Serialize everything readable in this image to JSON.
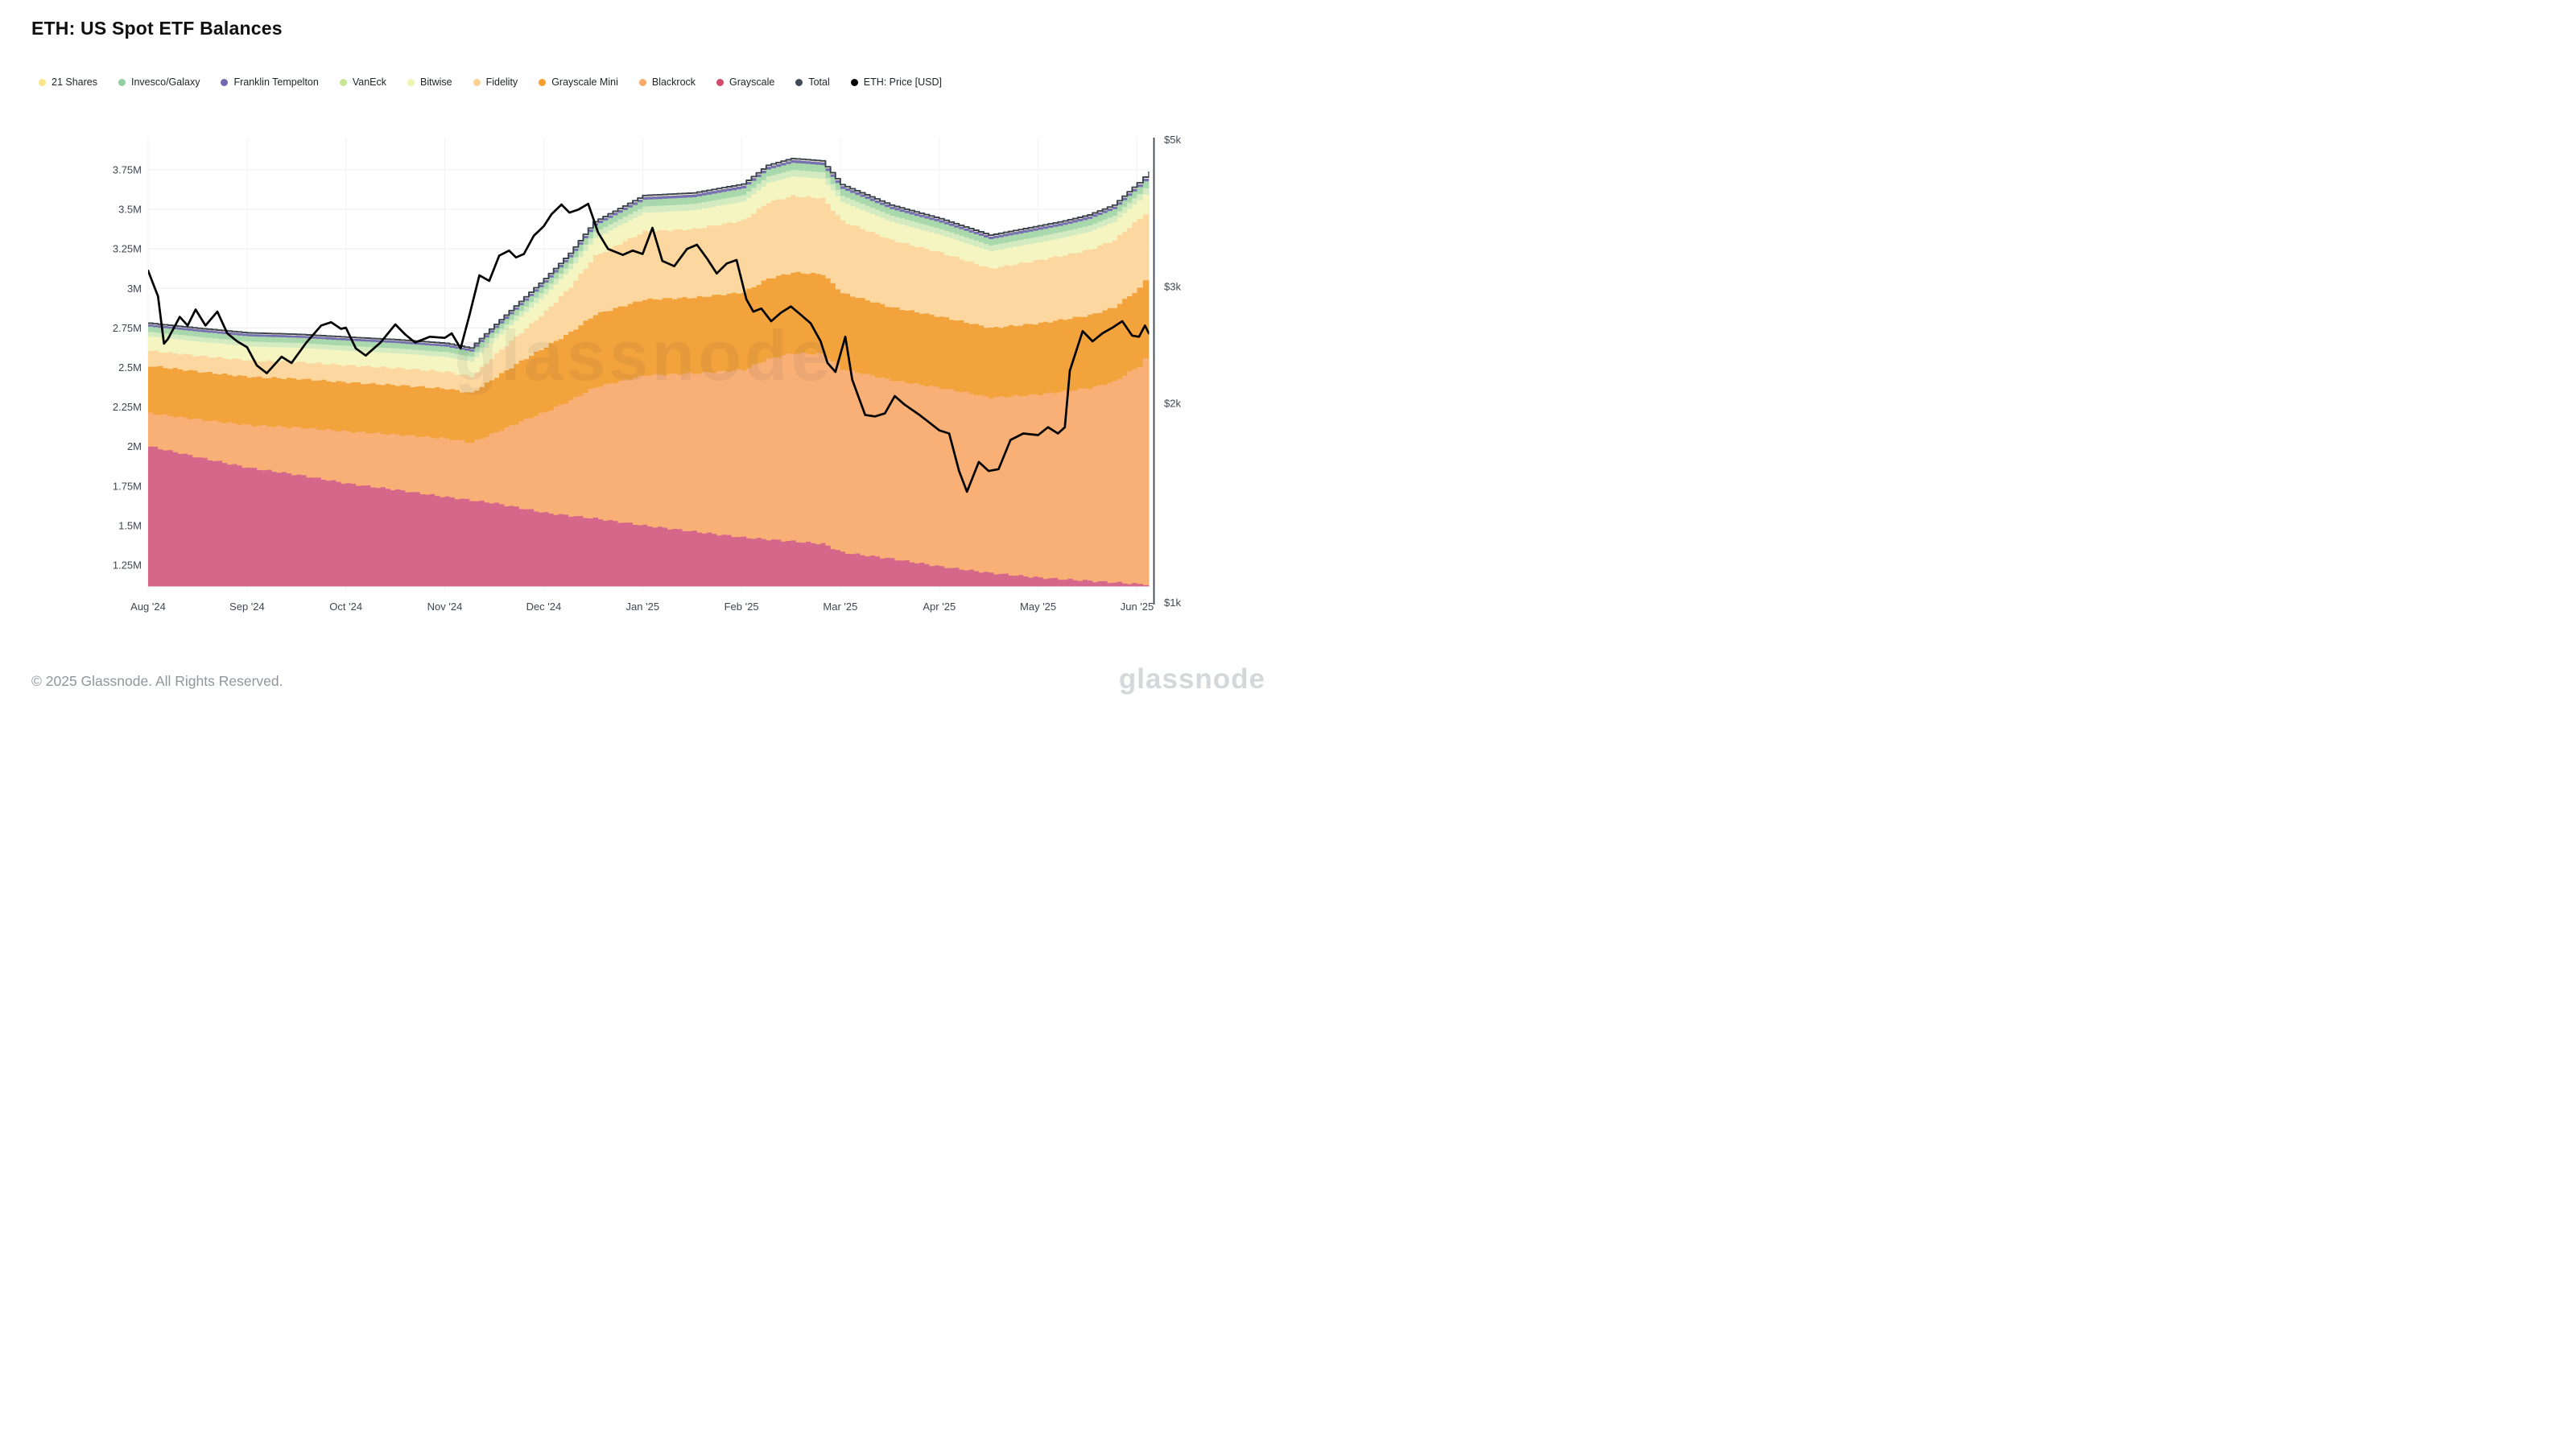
{
  "title": "ETH: US Spot ETF Balances",
  "watermark": "glassnode",
  "footer": {
    "copyright": "© 2025 Glassnode. All Rights Reserved.",
    "logo": "glassnode"
  },
  "legend": [
    {
      "label": "21 Shares",
      "color": "#f8e48c"
    },
    {
      "label": "Invesco/Galaxy",
      "color": "#93cfa0"
    },
    {
      "label": "Franklin Tempelton",
      "color": "#6f6ab0"
    },
    {
      "label": "VanEck",
      "color": "#c8e594"
    },
    {
      "label": "Bitwise",
      "color": "#eef3ae"
    },
    {
      "label": "Fidelity",
      "color": "#fbd090"
    },
    {
      "label": "Grayscale Mini",
      "color": "#f49d2c"
    },
    {
      "label": "Blackrock",
      "color": "#f8a968"
    },
    {
      "label": "Grayscale",
      "color": "#d34a6c"
    },
    {
      "label": "Total",
      "color": "#414b58"
    },
    {
      "label": "ETH: Price [USD]",
      "color": "#000000"
    }
  ],
  "chart_data": {
    "type": "area",
    "subtype": "stacked-area with overlaid price line",
    "title": "ETH: US Spot ETF Balances",
    "x_tick_labels": [
      "Aug '24",
      "Sep '24",
      "Oct '24",
      "Nov '24",
      "Dec '24",
      "Jan '25",
      "Feb '25",
      "Mar '25",
      "Apr '25",
      "May '25",
      "Jun '25"
    ],
    "left_axis": {
      "unit": "M ETH",
      "scale": "linear",
      "tick_values": [
        3.75,
        3.5,
        3.25,
        3.0,
        2.75,
        2.5,
        2.25,
        2.0,
        1.75,
        1.5,
        1.25
      ],
      "tick_labels": [
        "3.75M",
        "3.5M",
        "3.25M",
        "3M",
        "2.75M",
        "2.5M",
        "2.25M",
        "2M",
        "1.75M",
        "1.5M",
        "1.25M"
      ],
      "visible_min": 1.118,
      "visible_max": 3.907,
      "grid": true
    },
    "right_axis": {
      "unit": "USD",
      "scale": "log",
      "tick_values": [
        5000,
        3000,
        2000,
        1000
      ],
      "tick_labels": [
        "$5k",
        "$3k",
        "$2k",
        "$1k"
      ],
      "range": [
        1000,
        5000
      ]
    },
    "t_months_since_aug24": [
      0,
      0.5,
      1,
      1.5,
      2,
      2.5,
      3,
      3.25,
      3.5,
      3.75,
      4,
      4.25,
      4.5,
      5,
      5.5,
      6,
      6.25,
      6.5,
      6.8,
      7,
      7.5,
      8,
      8.5,
      9,
      9.25,
      9.5,
      9.75,
      10,
      10.12
    ],
    "series": [
      {
        "name": "Grayscale",
        "color": "#d5688a",
        "values": [
          2.0,
          1.93,
          1.865,
          1.82,
          1.765,
          1.725,
          1.68,
          1.66,
          1.64,
          1.61,
          1.58,
          1.562,
          1.545,
          1.5,
          1.462,
          1.425,
          1.412,
          1.4,
          1.385,
          1.33,
          1.29,
          1.24,
          1.2,
          1.17,
          1.16,
          1.15,
          1.14,
          1.13,
          1.128
        ]
      },
      {
        "name": "Blackrock",
        "color": "#f9b077",
        "values": [
          0.21,
          0.24,
          0.27,
          0.3,
          0.33,
          0.35,
          0.37,
          0.365,
          0.45,
          0.55,
          0.64,
          0.73,
          0.83,
          0.95,
          1.0,
          1.06,
          1.14,
          1.19,
          1.2,
          1.16,
          1.13,
          1.13,
          1.11,
          1.16,
          1.19,
          1.22,
          1.27,
          1.38,
          1.47
        ]
      },
      {
        "name": "Grayscale Mini",
        "color": "#f3a33c",
        "values": [
          0.3,
          0.303,
          0.305,
          0.308,
          0.31,
          0.313,
          0.315,
          0.312,
          0.35,
          0.38,
          0.41,
          0.43,
          0.46,
          0.48,
          0.48,
          0.49,
          0.51,
          0.51,
          0.505,
          0.48,
          0.46,
          0.45,
          0.44,
          0.45,
          0.455,
          0.46,
          0.47,
          0.49,
          0.5
        ]
      },
      {
        "name": "Fidelity",
        "color": "#fcd7a0",
        "values": [
          0.095,
          0.1,
          0.104,
          0.106,
          0.108,
          0.108,
          0.107,
          0.105,
          0.145,
          0.18,
          0.225,
          0.288,
          0.37,
          0.43,
          0.433,
          0.455,
          0.483,
          0.485,
          0.48,
          0.455,
          0.425,
          0.405,
          0.375,
          0.4,
          0.405,
          0.415,
          0.425,
          0.44,
          0.41
        ]
      },
      {
        "name": "Bitwise",
        "color": "#f4f5c0",
        "values": [
          0.09,
          0.09,
          0.09,
          0.091,
          0.092,
          0.093,
          0.094,
          0.094,
          0.098,
          0.103,
          0.107,
          0.11,
          0.113,
          0.118,
          0.119,
          0.12,
          0.122,
          0.123,
          0.123,
          0.12,
          0.116,
          0.112,
          0.11,
          0.112,
          0.113,
          0.114,
          0.116,
          0.118,
          0.12
        ]
      },
      {
        "name": "VanEck",
        "color": "#d4ebc2",
        "values": [
          0.03,
          0.03,
          0.03,
          0.03,
          0.031,
          0.031,
          0.031,
          0.031,
          0.032,
          0.034,
          0.036,
          0.037,
          0.038,
          0.04,
          0.04,
          0.04,
          0.041,
          0.042,
          0.042,
          0.041,
          0.039,
          0.038,
          0.037,
          0.038,
          0.038,
          0.039,
          0.039,
          0.04,
          0.041
        ]
      },
      {
        "name": "Invesco/Galaxy",
        "color": "#a8d8ac",
        "values": [
          0.033,
          0.033,
          0.033,
          0.033,
          0.034,
          0.034,
          0.034,
          0.034,
          0.035,
          0.037,
          0.039,
          0.04,
          0.041,
          0.043,
          0.043,
          0.043,
          0.044,
          0.045,
          0.045,
          0.044,
          0.042,
          0.041,
          0.04,
          0.041,
          0.041,
          0.042,
          0.042,
          0.043,
          0.044
        ]
      },
      {
        "name": "Franklin Tempelton",
        "color": "#7670b3",
        "values": [
          0.014,
          0.014,
          0.014,
          0.014,
          0.014,
          0.014,
          0.014,
          0.014,
          0.015,
          0.015,
          0.016,
          0.016,
          0.016,
          0.017,
          0.017,
          0.017,
          0.017,
          0.017,
          0.017,
          0.017,
          0.016,
          0.016,
          0.016,
          0.016,
          0.016,
          0.016,
          0.016,
          0.017,
          0.017
        ]
      },
      {
        "name": "21 Shares",
        "color": "#fdf3cc",
        "values": [
          0.008,
          0.008,
          0.008,
          0.008,
          0.008,
          0.008,
          0.008,
          0.008,
          0.008,
          0.009,
          0.009,
          0.009,
          0.009,
          0.01,
          0.01,
          0.01,
          0.01,
          0.01,
          0.01,
          0.01,
          0.009,
          0.009,
          0.009,
          0.009,
          0.009,
          0.009,
          0.009,
          0.01,
          0.01
        ]
      }
    ],
    "total_line": {
      "name": "Total",
      "color": "#3a4450"
    },
    "price_line": {
      "name": "ETH: Price [USD]",
      "color": "#000000",
      "t": [
        0.0,
        0.1,
        0.16,
        0.2,
        0.32,
        0.4,
        0.48,
        0.58,
        0.7,
        0.8,
        0.9,
        1.0,
        1.1,
        1.2,
        1.35,
        1.45,
        1.6,
        1.75,
        1.85,
        1.95,
        2.0,
        2.1,
        2.2,
        2.35,
        2.5,
        2.6,
        2.7,
        2.85,
        3.0,
        3.07,
        3.16,
        3.25,
        3.35,
        3.45,
        3.55,
        3.65,
        3.72,
        3.8,
        3.9,
        4.0,
        4.08,
        4.18,
        4.26,
        4.35,
        4.45,
        4.55,
        4.65,
        4.8,
        4.9,
        5.0,
        5.1,
        5.2,
        5.32,
        5.45,
        5.55,
        5.65,
        5.75,
        5.85,
        5.95,
        6.05,
        6.12,
        6.2,
        6.3,
        6.4,
        6.5,
        6.6,
        6.7,
        6.8,
        6.87,
        6.95,
        7.05,
        7.12,
        7.25,
        7.35,
        7.45,
        7.55,
        7.65,
        7.8,
        7.9,
        8.0,
        8.1,
        8.2,
        8.28,
        8.4,
        8.5,
        8.6,
        8.72,
        8.85,
        9.0,
        9.1,
        9.2,
        9.27,
        9.32,
        9.45,
        9.55,
        9.65,
        9.75,
        9.85,
        9.95,
        10.02,
        10.08,
        10.12
      ],
      "usd": [
        3170,
        2900,
        2460,
        2500,
        2700,
        2620,
        2770,
        2620,
        2750,
        2550,
        2480,
        2430,
        2280,
        2220,
        2350,
        2300,
        2470,
        2620,
        2650,
        2590,
        2600,
        2420,
        2360,
        2470,
        2630,
        2540,
        2470,
        2520,
        2510,
        2550,
        2420,
        2720,
        3120,
        3060,
        3340,
        3400,
        3320,
        3360,
        3580,
        3700,
        3860,
        3990,
        3880,
        3920,
        4000,
        3620,
        3420,
        3350,
        3400,
        3360,
        3680,
        3280,
        3220,
        3420,
        3470,
        3310,
        3140,
        3250,
        3290,
        2870,
        2750,
        2780,
        2660,
        2740,
        2800,
        2720,
        2640,
        2480,
        2300,
        2230,
        2520,
        2170,
        1920,
        1910,
        1930,
        2050,
        1990,
        1920,
        1870,
        1820,
        1800,
        1580,
        1470,
        1630,
        1580,
        1590,
        1760,
        1800,
        1790,
        1840,
        1800,
        1840,
        2240,
        2570,
        2480,
        2550,
        2600,
        2660,
        2530,
        2520,
        2620,
        2550
      ]
    },
    "colors": {
      "grid_h": "#ededef",
      "grid_v": "#f2f2f4",
      "right_axis_line": "#39424e"
    }
  }
}
